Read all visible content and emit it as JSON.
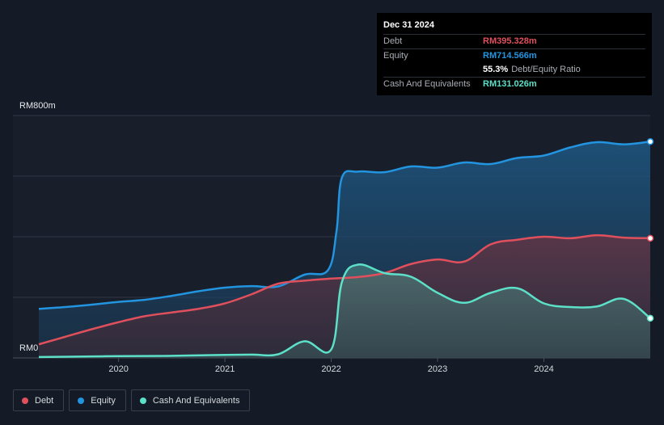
{
  "tooltip": {
    "date": "Dec 31 2024",
    "debt_label": "Debt",
    "debt_value": "RM395.328m",
    "equity_label": "Equity",
    "equity_value": "RM714.566m",
    "ratio_value": "55.3%",
    "ratio_label": "Debt/Equity Ratio",
    "cash_label": "Cash And Equivalents",
    "cash_value": "RM131.026m"
  },
  "legend": [
    {
      "label": "Debt",
      "color": "#e0505c"
    },
    {
      "label": "Equity",
      "color": "#2394df"
    },
    {
      "label": "Cash And Equivalents",
      "color": "#5ce0c8"
    }
  ],
  "chart_data": {
    "type": "area",
    "y_top_label": "RM800m",
    "y_bottom_label": "RM0",
    "ylim": [
      0,
      800
    ],
    "xlim": [
      2019.25,
      2025.0
    ],
    "x_ticks": [
      2020,
      2021,
      2022,
      2023,
      2024
    ],
    "grid": true,
    "series": [
      {
        "name": "Equity",
        "color": "#2394df",
        "x": [
          2019.25,
          2019.5,
          2019.75,
          2020.0,
          2020.25,
          2020.5,
          2020.75,
          2021.0,
          2021.25,
          2021.5,
          2021.75,
          2021.97,
          2022.05,
          2022.1,
          2022.25,
          2022.5,
          2022.75,
          2023.0,
          2023.25,
          2023.5,
          2023.75,
          2024.0,
          2024.25,
          2024.5,
          2024.75,
          2025.0
        ],
        "values": [
          162,
          168,
          176,
          185,
          192,
          205,
          220,
          232,
          237,
          236,
          275,
          290,
          420,
          595,
          615,
          613,
          632,
          628,
          645,
          640,
          660,
          668,
          695,
          712,
          705,
          714
        ]
      },
      {
        "name": "Debt",
        "color": "#e0505c",
        "x": [
          2019.25,
          2019.5,
          2019.75,
          2020.0,
          2020.25,
          2020.5,
          2020.75,
          2021.0,
          2021.25,
          2021.5,
          2021.75,
          2022.0,
          2022.25,
          2022.5,
          2022.75,
          2023.0,
          2023.25,
          2023.5,
          2023.75,
          2024.0,
          2024.25,
          2024.5,
          2024.75,
          2025.0
        ],
        "values": [
          45,
          70,
          95,
          118,
          138,
          150,
          162,
          180,
          210,
          245,
          255,
          262,
          267,
          280,
          310,
          325,
          318,
          375,
          390,
          400,
          395,
          405,
          397,
          395
        ]
      },
      {
        "name": "Cash And Equivalents",
        "color": "#5ce0c8",
        "x": [
          2019.25,
          2019.75,
          2020.0,
          2020.5,
          2021.0,
          2021.25,
          2021.5,
          2021.75,
          2022.0,
          2022.1,
          2022.25,
          2022.5,
          2022.75,
          2023.0,
          2023.25,
          2023.5,
          2023.75,
          2024.0,
          2024.25,
          2024.5,
          2024.75,
          2025.0
        ],
        "values": [
          3,
          5,
          6,
          7,
          10,
          11,
          12,
          55,
          28,
          250,
          308,
          280,
          268,
          215,
          182,
          215,
          230,
          180,
          168,
          170,
          195,
          131
        ]
      }
    ]
  }
}
